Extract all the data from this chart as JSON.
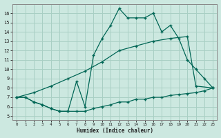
{
  "xlabel": "Humidex (Indice chaleur)",
  "bg_color": "#cce8e0",
  "grid_color": "#a8cfc4",
  "line_color": "#006655",
  "x_ticks": [
    0,
    1,
    2,
    3,
    4,
    5,
    6,
    7,
    8,
    9,
    10,
    11,
    12,
    13,
    14,
    15,
    16,
    17,
    18,
    19,
    20,
    21,
    22,
    23
  ],
  "y_ticks": [
    5,
    6,
    7,
    8,
    9,
    10,
    11,
    12,
    13,
    14,
    15,
    16
  ],
  "ylim": [
    4.6,
    17.0
  ],
  "xlim": [
    -0.5,
    23.5
  ],
  "line1_x": [
    0,
    1,
    2,
    3,
    4,
    5,
    6,
    7,
    8,
    9,
    10,
    11,
    12,
    13,
    14,
    15,
    16,
    17,
    18,
    19,
    20,
    21,
    22,
    23
  ],
  "line1_y": [
    7.0,
    7.0,
    6.5,
    6.2,
    5.8,
    5.5,
    5.5,
    8.7,
    6.0,
    11.5,
    13.3,
    14.7,
    16.5,
    15.5,
    15.5,
    15.5,
    16.0,
    14.0,
    14.7,
    13.3,
    11.0,
    10.0,
    9.0,
    8.0
  ],
  "line2_x": [
    0,
    2,
    4,
    6,
    8,
    10,
    12,
    14,
    16,
    18,
    20,
    21,
    23
  ],
  "line2_y": [
    7.0,
    7.5,
    8.2,
    9.0,
    9.8,
    10.8,
    12.0,
    12.5,
    13.0,
    13.3,
    13.5,
    8.2,
    8.0
  ],
  "line3_x": [
    0,
    1,
    2,
    3,
    4,
    5,
    6,
    7,
    8,
    9,
    10,
    11,
    12,
    13,
    14,
    15,
    16,
    17,
    18,
    19,
    20,
    21,
    22,
    23
  ],
  "line3_y": [
    7.0,
    7.0,
    6.5,
    6.2,
    5.8,
    5.5,
    5.5,
    5.5,
    5.5,
    5.8,
    6.0,
    6.2,
    6.5,
    6.5,
    6.8,
    6.8,
    7.0,
    7.0,
    7.2,
    7.3,
    7.4,
    7.5,
    7.7,
    8.0
  ]
}
